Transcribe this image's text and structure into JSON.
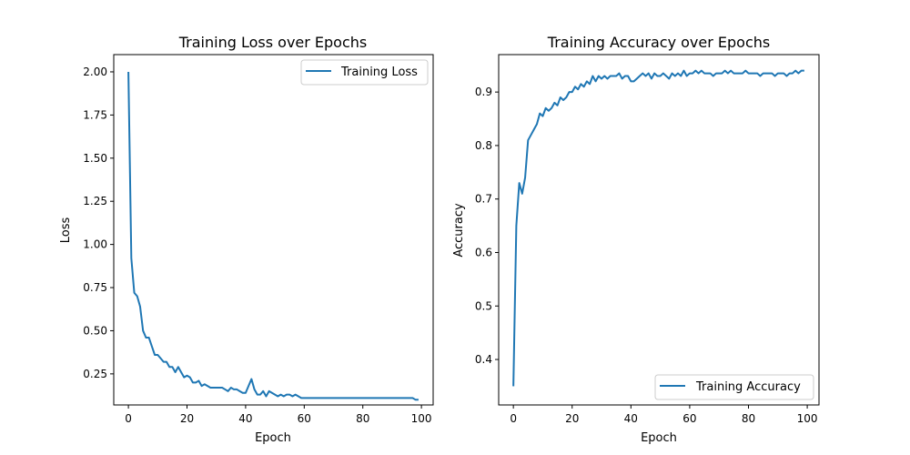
{
  "chart_data": [
    {
      "type": "line",
      "title": "Training Loss over Epochs",
      "xlabel": "Epoch",
      "ylabel": "Loss",
      "xlim": [
        -5,
        104
      ],
      "ylim": [
        0.07,
        2.1
      ],
      "xticks": [
        0,
        20,
        40,
        60,
        80,
        100
      ],
      "xtick_labels": [
        "0",
        "20",
        "40",
        "60",
        "80",
        "100"
      ],
      "yticks": [
        0.25,
        0.5,
        0.75,
        1.0,
        1.25,
        1.5,
        1.75,
        2.0
      ],
      "ytick_labels": [
        "0.25",
        "0.50",
        "0.75",
        "1.00",
        "1.25",
        "1.50",
        "1.75",
        "2.00"
      ],
      "grid": false,
      "legend_position": "top-right",
      "series": [
        {
          "name": "Training Loss",
          "color": "#1f77b4",
          "x": [
            0,
            1,
            2,
            3,
            4,
            5,
            6,
            7,
            8,
            9,
            10,
            11,
            12,
            13,
            14,
            15,
            16,
            17,
            18,
            19,
            20,
            21,
            22,
            23,
            24,
            25,
            26,
            27,
            28,
            29,
            30,
            31,
            32,
            33,
            34,
            35,
            36,
            37,
            38,
            39,
            40,
            41,
            42,
            43,
            44,
            45,
            46,
            47,
            48,
            49,
            50,
            51,
            52,
            53,
            54,
            55,
            56,
            57,
            58,
            59,
            60,
            61,
            62,
            63,
            64,
            65,
            66,
            67,
            68,
            69,
            70,
            71,
            72,
            73,
            74,
            75,
            76,
            77,
            78,
            79,
            80,
            81,
            82,
            83,
            84,
            85,
            86,
            87,
            88,
            89,
            90,
            91,
            92,
            93,
            94,
            95,
            96,
            97,
            98,
            99
          ],
          "y": [
            2.0,
            0.92,
            0.72,
            0.7,
            0.64,
            0.5,
            0.46,
            0.46,
            0.41,
            0.36,
            0.36,
            0.34,
            0.32,
            0.32,
            0.29,
            0.29,
            0.26,
            0.29,
            0.26,
            0.23,
            0.24,
            0.23,
            0.2,
            0.2,
            0.21,
            0.18,
            0.19,
            0.18,
            0.17,
            0.17,
            0.17,
            0.17,
            0.17,
            0.16,
            0.15,
            0.17,
            0.16,
            0.16,
            0.15,
            0.14,
            0.14,
            0.18,
            0.22,
            0.16,
            0.13,
            0.13,
            0.15,
            0.12,
            0.15,
            0.14,
            0.13,
            0.12,
            0.13,
            0.12,
            0.13,
            0.13,
            0.12,
            0.13,
            0.12,
            0.11,
            0.11,
            0.11,
            0.11,
            0.11,
            0.11,
            0.11,
            0.11,
            0.11,
            0.11,
            0.11,
            0.11,
            0.11,
            0.11,
            0.11,
            0.11,
            0.11,
            0.11,
            0.11,
            0.11,
            0.11,
            0.11,
            0.11,
            0.11,
            0.11,
            0.11,
            0.11,
            0.11,
            0.11,
            0.11,
            0.11,
            0.11,
            0.11,
            0.11,
            0.11,
            0.11,
            0.11,
            0.11,
            0.11,
            0.1,
            0.1
          ]
        }
      ]
    },
    {
      "type": "line",
      "title": "Training Accuracy over Epochs",
      "xlabel": "Epoch",
      "ylabel": "Accuracy",
      "xlim": [
        -5,
        104
      ],
      "ylim": [
        0.315,
        0.97
      ],
      "xticks": [
        0,
        20,
        40,
        60,
        80,
        100
      ],
      "xtick_labels": [
        "0",
        "20",
        "40",
        "60",
        "80",
        "100"
      ],
      "yticks": [
        0.4,
        0.5,
        0.6,
        0.7,
        0.8,
        0.9
      ],
      "ytick_labels": [
        "0.4",
        "0.5",
        "0.6",
        "0.7",
        "0.8",
        "0.9"
      ],
      "grid": false,
      "legend_position": "bottom-right",
      "series": [
        {
          "name": "Training Accuracy",
          "color": "#1f77b4",
          "x": [
            0,
            1,
            2,
            3,
            4,
            5,
            6,
            7,
            8,
            9,
            10,
            11,
            12,
            13,
            14,
            15,
            16,
            17,
            18,
            19,
            20,
            21,
            22,
            23,
            24,
            25,
            26,
            27,
            28,
            29,
            30,
            31,
            32,
            33,
            34,
            35,
            36,
            37,
            38,
            39,
            40,
            41,
            42,
            43,
            44,
            45,
            46,
            47,
            48,
            49,
            50,
            51,
            52,
            53,
            54,
            55,
            56,
            57,
            58,
            59,
            60,
            61,
            62,
            63,
            64,
            65,
            66,
            67,
            68,
            69,
            70,
            71,
            72,
            73,
            74,
            75,
            76,
            77,
            78,
            79,
            80,
            81,
            82,
            83,
            84,
            85,
            86,
            87,
            88,
            89,
            90,
            91,
            92,
            93,
            94,
            95,
            96,
            97,
            98,
            99
          ],
          "y": [
            0.35,
            0.65,
            0.73,
            0.71,
            0.74,
            0.81,
            0.82,
            0.83,
            0.84,
            0.86,
            0.855,
            0.87,
            0.865,
            0.87,
            0.88,
            0.875,
            0.89,
            0.885,
            0.89,
            0.9,
            0.9,
            0.91,
            0.905,
            0.915,
            0.91,
            0.92,
            0.915,
            0.93,
            0.92,
            0.93,
            0.925,
            0.93,
            0.925,
            0.93,
            0.93,
            0.93,
            0.935,
            0.925,
            0.93,
            0.93,
            0.92,
            0.92,
            0.925,
            0.93,
            0.935,
            0.93,
            0.935,
            0.925,
            0.935,
            0.93,
            0.93,
            0.935,
            0.93,
            0.925,
            0.935,
            0.93,
            0.935,
            0.93,
            0.94,
            0.93,
            0.935,
            0.935,
            0.94,
            0.935,
            0.94,
            0.935,
            0.935,
            0.935,
            0.93,
            0.935,
            0.935,
            0.935,
            0.94,
            0.935,
            0.94,
            0.935,
            0.935,
            0.935,
            0.935,
            0.94,
            0.935,
            0.935,
            0.935,
            0.935,
            0.93,
            0.935,
            0.935,
            0.935,
            0.935,
            0.93,
            0.935,
            0.935,
            0.935,
            0.93,
            0.935,
            0.935,
            0.94,
            0.935,
            0.94,
            0.94
          ]
        }
      ]
    }
  ]
}
